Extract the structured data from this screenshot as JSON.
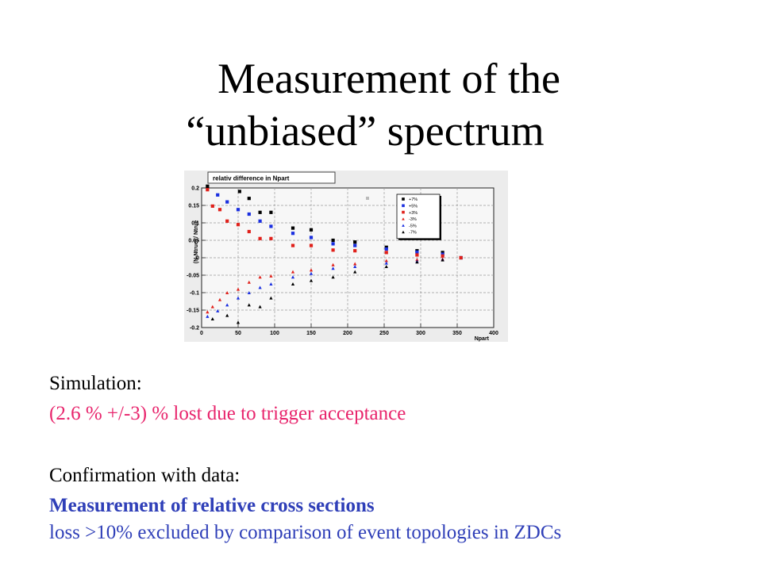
{
  "title": {
    "line1": "Measurement of the",
    "line2": "“unbiased” spectrum"
  },
  "chart_data": {
    "type": "scatter",
    "title": "relativ difference in Npart",
    "xlabel": "Npart",
    "ylabel": "(N-Ntrue) / Ntrue",
    "xlim": [
      0,
      400
    ],
    "ylim": [
      -0.2,
      0.2
    ],
    "x_ticks": [
      "0",
      "50",
      "100",
      "150",
      "200",
      "250",
      "300",
      "350",
      "400"
    ],
    "y_ticks": [
      "0.2",
      "0.15",
      "0.1",
      "0.05",
      "0",
      "-0.05",
      "-0.1",
      "-0.15",
      "-0.2"
    ],
    "grid": true,
    "legend_position": "top-right",
    "series": [
      {
        "name": "+7%",
        "marker": "square",
        "color": "#000000",
        "points": [
          [
            8,
            0.205
          ],
          [
            52,
            0.19
          ],
          [
            65,
            0.17
          ],
          [
            80,
            0.13
          ],
          [
            95,
            0.13
          ],
          [
            125,
            0.085
          ],
          [
            150,
            0.08
          ],
          [
            180,
            0.05
          ],
          [
            210,
            0.045
          ],
          [
            253,
            0.03
          ],
          [
            295,
            0.02
          ],
          [
            330,
            0.015
          ],
          [
            355,
            0.0
          ]
        ]
      },
      {
        "name": "+5%",
        "marker": "square",
        "color": "#1a2fe0",
        "points": [
          [
            22,
            0.18
          ],
          [
            35,
            0.16
          ],
          [
            50,
            0.138
          ],
          [
            65,
            0.125
          ],
          [
            80,
            0.105
          ],
          [
            95,
            0.09
          ],
          [
            125,
            0.07
          ],
          [
            150,
            0.058
          ],
          [
            180,
            0.04
          ],
          [
            210,
            0.035
          ],
          [
            253,
            0.025
          ],
          [
            295,
            0.016
          ],
          [
            330,
            0.01
          ],
          [
            355,
            0.0
          ]
        ]
      },
      {
        "name": "+3%",
        "marker": "square",
        "color": "#e0201a",
        "points": [
          [
            8,
            0.195
          ],
          [
            15,
            0.148
          ],
          [
            25,
            0.138
          ],
          [
            35,
            0.105
          ],
          [
            50,
            0.095
          ],
          [
            65,
            0.075
          ],
          [
            80,
            0.055
          ],
          [
            95,
            0.055
          ],
          [
            125,
            0.035
          ],
          [
            150,
            0.035
          ],
          [
            180,
            0.022
          ],
          [
            210,
            0.02
          ],
          [
            253,
            0.015
          ],
          [
            295,
            0.008
          ],
          [
            330,
            0.005
          ],
          [
            355,
            0.0
          ]
        ]
      },
      {
        "name": "-3%",
        "marker": "triangle",
        "color": "#e0201a",
        "points": [
          [
            8,
            -0.155
          ],
          [
            15,
            -0.14
          ],
          [
            25,
            -0.12
          ],
          [
            35,
            -0.1
          ],
          [
            50,
            -0.09
          ],
          [
            65,
            -0.07
          ],
          [
            80,
            -0.055
          ],
          [
            95,
            -0.052
          ],
          [
            125,
            -0.04
          ],
          [
            150,
            -0.035
          ],
          [
            180,
            -0.02
          ],
          [
            210,
            -0.017
          ],
          [
            253,
            -0.008
          ],
          [
            295,
            -0.005
          ],
          [
            330,
            -0.003
          ]
        ]
      },
      {
        "name": "-5%",
        "marker": "triangle",
        "color": "#1a2fe0",
        "points": [
          [
            8,
            -0.168
          ],
          [
            22,
            -0.152
          ],
          [
            35,
            -0.135
          ],
          [
            50,
            -0.115
          ],
          [
            65,
            -0.1
          ],
          [
            80,
            -0.085
          ],
          [
            95,
            -0.075
          ],
          [
            125,
            -0.055
          ],
          [
            150,
            -0.045
          ],
          [
            180,
            -0.03
          ],
          [
            210,
            -0.025
          ],
          [
            253,
            -0.015
          ],
          [
            295,
            -0.01
          ],
          [
            330,
            -0.005
          ]
        ]
      },
      {
        "name": "-7%",
        "marker": "triangle",
        "color": "#000000",
        "points": [
          [
            15,
            -0.175
          ],
          [
            35,
            -0.165
          ],
          [
            50,
            -0.185
          ],
          [
            65,
            -0.135
          ],
          [
            80,
            -0.14
          ],
          [
            95,
            -0.115
          ],
          [
            125,
            -0.075
          ],
          [
            150,
            -0.065
          ],
          [
            180,
            -0.055
          ],
          [
            210,
            -0.04
          ],
          [
            253,
            -0.025
          ],
          [
            295,
            -0.012
          ],
          [
            330,
            -0.006
          ]
        ]
      }
    ]
  },
  "simulation": {
    "heading": "Simulation:",
    "result": "(2.6 % +/-3) % lost due to trigger acceptance"
  },
  "confirmation": {
    "heading": "Confirmation with data:",
    "method": "Measurement of relative cross sections",
    "conclusion": "loss >10%  excluded by comparison of event topologies in ZDCs"
  }
}
